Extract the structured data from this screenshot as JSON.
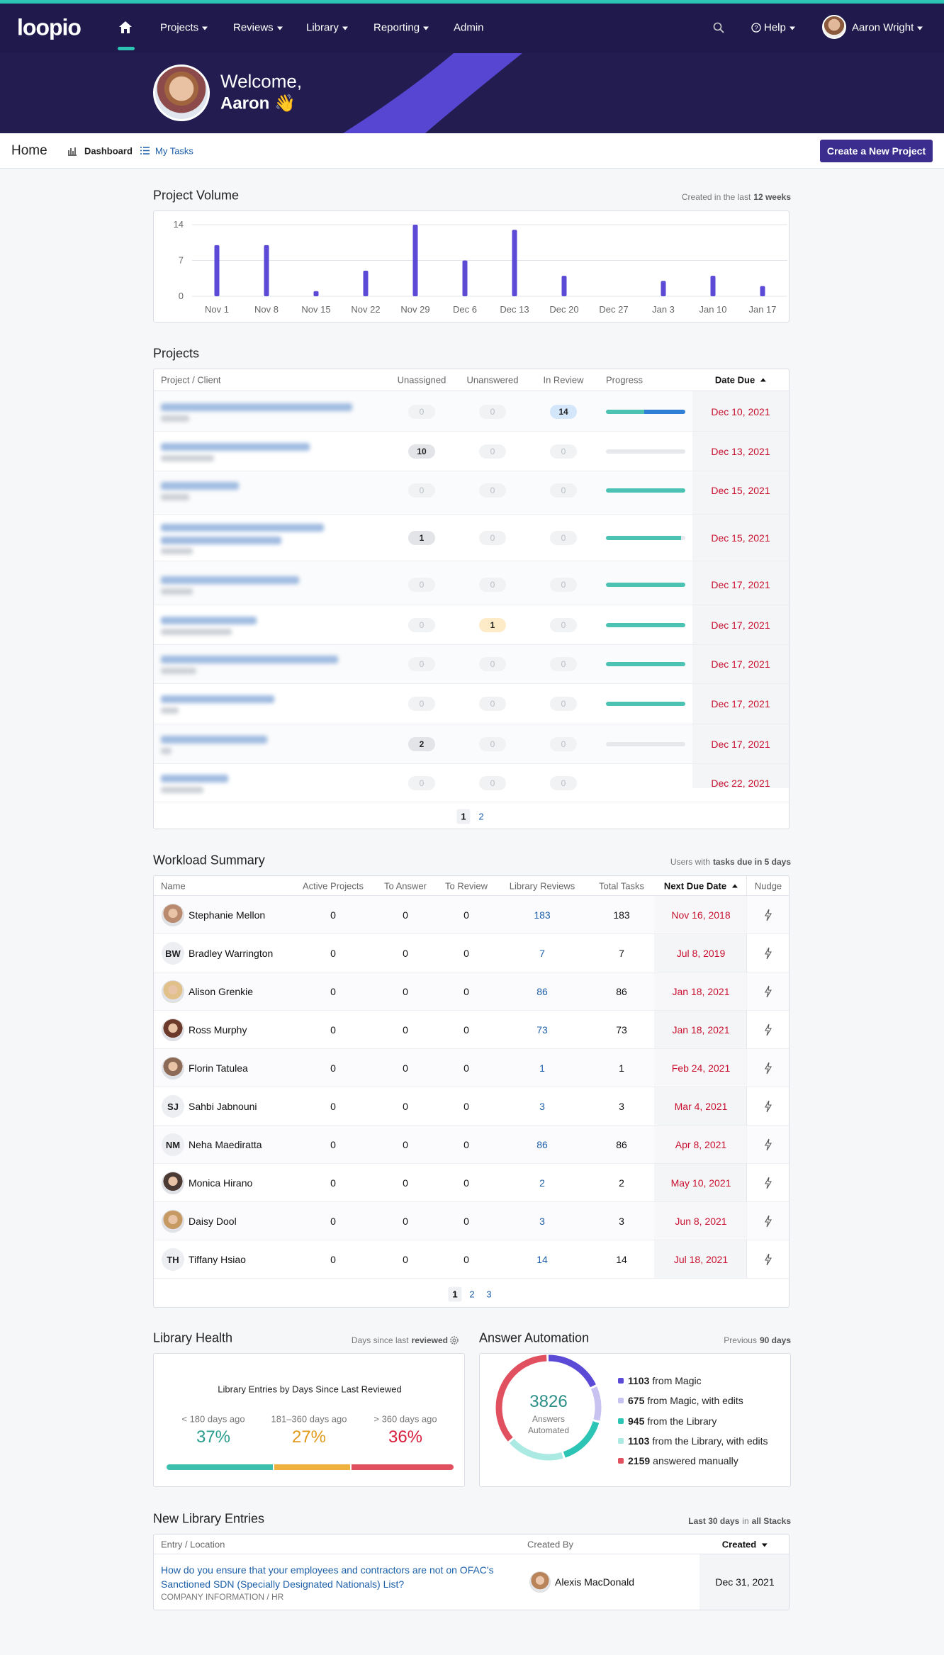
{
  "nav": {
    "logo": "loopio",
    "items": [
      "Projects",
      "Reviews",
      "Library",
      "Reporting",
      "Admin"
    ],
    "help": "Help",
    "user": "Aaron Wright"
  },
  "welcome": {
    "greeting": "Welcome,",
    "name": "Aaron 👋"
  },
  "subnav": {
    "title": "Home",
    "tabs": [
      "Dashboard",
      "My Tasks"
    ],
    "button": "Create a New Project"
  },
  "project_volume": {
    "title": "Project Volume",
    "note": "Created in the last",
    "note_strong": "12 weeks"
  },
  "chart_data": {
    "type": "bar",
    "categories": [
      "Nov 1",
      "Nov 8",
      "Nov 15",
      "Nov 22",
      "Nov 29",
      "Dec 6",
      "Dec 13",
      "Dec 20",
      "Dec 27",
      "Jan 3",
      "Jan 10",
      "Jan 17"
    ],
    "values": [
      10,
      10,
      1,
      5,
      14,
      7,
      13,
      4,
      0,
      3,
      4,
      2
    ],
    "color": "#5b4ad6",
    "ylim": [
      0,
      14
    ],
    "yticks": [
      0,
      7,
      14
    ],
    "grid": true
  },
  "projects": {
    "title": "Projects",
    "headers": [
      "Project / Client",
      "Unassigned",
      "Unanswered",
      "In Review",
      "Progress",
      "Date Due"
    ],
    "rows": [
      {
        "unassigned": 0,
        "unanswered": 0,
        "in_review": 14,
        "progress": [
          48,
          52
        ],
        "due": "Dec 10, 2021"
      },
      {
        "unassigned": 10,
        "unanswered": 0,
        "in_review": 0,
        "progress": [
          0,
          0
        ],
        "due": "Dec 13, 2021"
      },
      {
        "unassigned": 0,
        "unanswered": 0,
        "in_review": 0,
        "progress": [
          100,
          0
        ],
        "due": "Dec 15, 2021"
      },
      {
        "unassigned": 1,
        "unanswered": 0,
        "in_review": 0,
        "progress": [
          95,
          0
        ],
        "due": "Dec 15, 2021"
      },
      {
        "unassigned": 0,
        "unanswered": 0,
        "in_review": 0,
        "progress": [
          100,
          0
        ],
        "due": "Dec 17, 2021"
      },
      {
        "unassigned": 0,
        "unanswered": 1,
        "in_review": 0,
        "progress": [
          100,
          0
        ],
        "due": "Dec 17, 2021"
      },
      {
        "unassigned": 0,
        "unanswered": 0,
        "in_review": 0,
        "progress": [
          100,
          0
        ],
        "due": "Dec 17, 2021"
      },
      {
        "unassigned": 0,
        "unanswered": 0,
        "in_review": 0,
        "progress": [
          100,
          0
        ],
        "due": "Dec 17, 2021"
      },
      {
        "unassigned": 2,
        "unanswered": 0,
        "in_review": 0,
        "progress": [
          0,
          0
        ],
        "due": "Dec 17, 2021"
      },
      {
        "unassigned": 0,
        "unanswered": 0,
        "in_review": 0,
        "progress": null,
        "due": "Dec 22, 2021"
      }
    ],
    "pages": [
      1,
      2
    ]
  },
  "workload": {
    "title": "Workload Summary",
    "note": "Users with",
    "note_strong": "tasks due in 5 days",
    "headers": [
      "Name",
      "Active Projects",
      "To Answer",
      "To Review",
      "Library Reviews",
      "Total Tasks",
      "Next Due Date",
      "Nudge"
    ],
    "rows": [
      {
        "name": "Stephanie Mellon",
        "active": 0,
        "to_answer": 0,
        "to_review": 0,
        "library_reviews": 183,
        "total": 183,
        "next_due": "Nov 16, 2018"
      },
      {
        "name": "Bradley Warrington",
        "initials": "BW",
        "active": 0,
        "to_answer": 0,
        "to_review": 0,
        "library_reviews": 7,
        "total": 7,
        "next_due": "Jul 8, 2019"
      },
      {
        "name": "Alison Grenkie",
        "active": 0,
        "to_answer": 0,
        "to_review": 0,
        "library_reviews": 86,
        "total": 86,
        "next_due": "Jan 18, 2021"
      },
      {
        "name": "Ross Murphy",
        "active": 0,
        "to_answer": 0,
        "to_review": 0,
        "library_reviews": 73,
        "total": 73,
        "next_due": "Jan 18, 2021"
      },
      {
        "name": "Florin Tatulea",
        "active": 0,
        "to_answer": 0,
        "to_review": 0,
        "library_reviews": 1,
        "total": 1,
        "next_due": "Feb 24, 2021"
      },
      {
        "name": "Sahbi Jabnouni",
        "initials": "SJ",
        "active": 0,
        "to_answer": 0,
        "to_review": 0,
        "library_reviews": 3,
        "total": 3,
        "next_due": "Mar 4, 2021"
      },
      {
        "name": "Neha Maediratta",
        "initials": "NM",
        "active": 0,
        "to_answer": 0,
        "to_review": 0,
        "library_reviews": 86,
        "total": 86,
        "next_due": "Apr 8, 2021"
      },
      {
        "name": "Monica Hirano",
        "active": 0,
        "to_answer": 0,
        "to_review": 0,
        "library_reviews": 2,
        "total": 2,
        "next_due": "May 10, 2021"
      },
      {
        "name": "Daisy Dool",
        "active": 0,
        "to_answer": 0,
        "to_review": 0,
        "library_reviews": 3,
        "total": 3,
        "next_due": "Jun 8, 2021"
      },
      {
        "name": "Tiffany Hsiao",
        "initials": "TH",
        "active": 0,
        "to_answer": 0,
        "to_review": 0,
        "library_reviews": 14,
        "total": 14,
        "next_due": "Jul 18, 2021"
      }
    ],
    "pages": [
      1,
      2,
      3
    ]
  },
  "library_health": {
    "title": "Library Health",
    "note": "Days since last",
    "note_strong": "reviewed",
    "card_title": "Library Entries by Days Since Last Reviewed",
    "stats": [
      {
        "label": "< 180 days ago",
        "value": 37,
        "value_label": "37%",
        "color": "#3dbfae"
      },
      {
        "label": "181–360 days ago",
        "value": 27,
        "value_label": "27%",
        "color": "#f0b23e"
      },
      {
        "label": "> 360 days ago",
        "value": 36,
        "value_label": "36%",
        "color": "#e0505e"
      }
    ]
  },
  "answer_automation": {
    "title": "Answer Automation",
    "note": "Previous",
    "note_strong": "90 days",
    "total": 3826,
    "total_label": [
      "Answers",
      "Automated"
    ],
    "items": [
      {
        "count": 1103,
        "text": "from Magic",
        "color": "#5b4ad6"
      },
      {
        "count": 675,
        "text": "from Magic, with edits",
        "color": "#c7c2ef"
      },
      {
        "count": 945,
        "text": "from the Library",
        "color": "#2cc4b4"
      },
      {
        "count": 1103,
        "text": "from the Library, with edits",
        "color": "#abe9e3"
      },
      {
        "count": 2159,
        "text": "answered manually",
        "color": "#e0505e"
      }
    ]
  },
  "new_entries": {
    "title": "New Library Entries",
    "note": "Last 30 days",
    "note_mid": "in",
    "note_strong": "all Stacks",
    "headers": [
      "Entry / Location",
      "Created By",
      "Created"
    ],
    "rows": [
      {
        "entry": "How do you ensure that your employees and contractors are not on OFAC's Sanctioned SDN (Specially Designated Nationals) List?",
        "location": "COMPANY INFORMATION / HR",
        "created_by": "Alexis MacDonald",
        "created": "Dec 31, 2021"
      }
    ]
  }
}
